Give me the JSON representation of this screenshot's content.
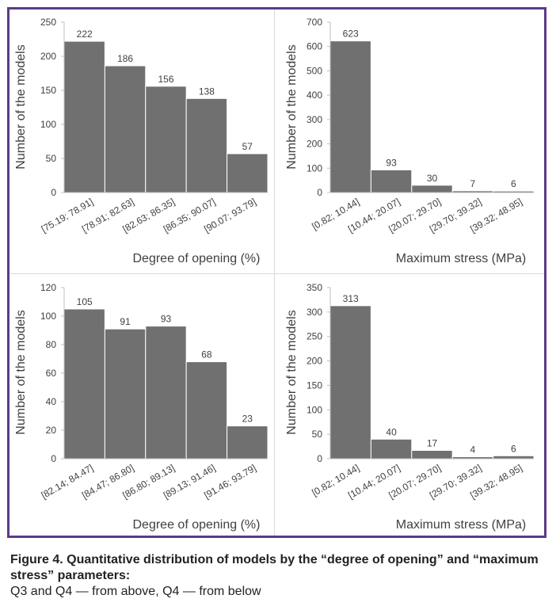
{
  "colors": {
    "frame": "#5b3a8c",
    "bar": "#707070",
    "bar_edge": "#ffffff",
    "axis": "#bfbfbf",
    "text": "#404040"
  },
  "chart_data": [
    {
      "type": "bar",
      "xlabel": "Degree of opening (%)",
      "ylabel": "Number of the models",
      "ylim": [
        0,
        250
      ],
      "yticks": [
        0,
        50,
        100,
        150,
        200,
        250
      ],
      "categories": [
        "[75.19; 78.91]",
        "[78.91; 82.63]",
        "[82.63; 86.35]",
        "[86.35; 90.07]",
        "[90.07; 93.79]"
      ],
      "values": [
        222,
        186,
        156,
        138,
        57
      ]
    },
    {
      "type": "bar",
      "xlabel": "Maximum stress (MPa)",
      "ylabel": "Number of the models",
      "ylim": [
        0,
        700
      ],
      "yticks": [
        0,
        100,
        200,
        300,
        400,
        500,
        600,
        700
      ],
      "categories": [
        "[0.82; 10.44]",
        "[10.44; 20.07]",
        "[20.07; 29.70]",
        "[29.70; 39.32]",
        "[39.32; 48.95]"
      ],
      "values": [
        623,
        93,
        30,
        7,
        6
      ]
    },
    {
      "type": "bar",
      "xlabel": "Degree of opening (%)",
      "ylabel": "Number of the models",
      "ylim": [
        0,
        120
      ],
      "yticks": [
        0,
        20,
        40,
        60,
        80,
        100,
        120
      ],
      "categories": [
        "[82.14; 84.47]",
        "[84.47; 86.80]",
        "[86.80; 89.13]",
        "[89.13; 91.46]",
        "[91.46; 93.79]"
      ],
      "values": [
        105,
        91,
        93,
        68,
        23
      ]
    },
    {
      "type": "bar",
      "xlabel": "Maximum stress (MPa)",
      "ylabel": "Number of the models",
      "ylim": [
        0,
        350
      ],
      "yticks": [
        0,
        50,
        100,
        150,
        200,
        250,
        300,
        350
      ],
      "categories": [
        "[0.82; 10.44]",
        "[10.44; 20.07]",
        "[20.07; 29.70]",
        "[29.70; 39.32]",
        "[39.32; 48.95]"
      ],
      "values": [
        313,
        40,
        17,
        4,
        6
      ]
    }
  ],
  "caption": {
    "title": "Figure 4. Quantitative distribution of models by the “degree of opening” and “maximum stress” parameters:",
    "note": "Q3 and Q4 — from above, Q4 — from below"
  }
}
